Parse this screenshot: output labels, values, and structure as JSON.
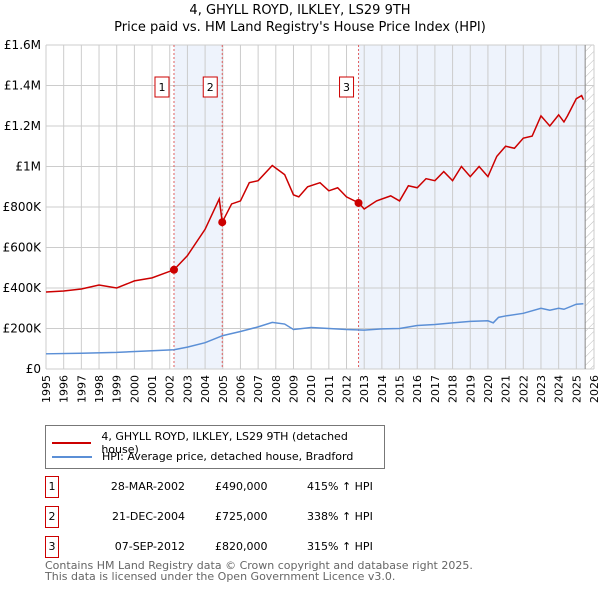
{
  "chart_data": {
    "type": "line",
    "title": "4, GHYLL ROYD, ILKLEY, LS29 9TH",
    "subtitle": "Price paid vs. HM Land Registry's House Price Index (HPI)",
    "xlim": [
      1995,
      2026
    ],
    "ylim": [
      0,
      1600000
    ],
    "x_ticks": [
      "1995",
      "1996",
      "1997",
      "1998",
      "1999",
      "2000",
      "2001",
      "2002",
      "2003",
      "2004",
      "2005",
      "2006",
      "2007",
      "2008",
      "2009",
      "2010",
      "2011",
      "2012",
      "2013",
      "2014",
      "2015",
      "2016",
      "2017",
      "2018",
      "2019",
      "2020",
      "2021",
      "2022",
      "2023",
      "2024",
      "2025",
      "2026"
    ],
    "y_ticks": [
      {
        "v": 0,
        "label": "£0"
      },
      {
        "v": 200000,
        "label": "£200K"
      },
      {
        "v": 400000,
        "label": "£400K"
      },
      {
        "v": 600000,
        "label": "£600K"
      },
      {
        "v": 800000,
        "label": "£800K"
      },
      {
        "v": 1000000,
        "label": "£1M"
      },
      {
        "v": 1200000,
        "label": "£1.2M"
      },
      {
        "v": 1400000,
        "label": "£1.4M"
      },
      {
        "v": 1600000,
        "label": "£1.6M"
      }
    ],
    "grid": true,
    "series": [
      {
        "name": "4, GHYLL ROYD, ILKLEY, LS29 9TH (detached house)",
        "color": "#cc0000",
        "x": [
          1995,
          1996,
          1997,
          1998,
          1999,
          2000,
          2001,
          2002.24,
          2003,
          2004,
          2004.8,
          2004.97,
          2005.5,
          2006,
          2006.5,
          2007,
          2007.8,
          2008.5,
          2009,
          2009.3,
          2009.8,
          2010.5,
          2011,
          2011.5,
          2012,
          2012.7,
          2013,
          2013.7,
          2014.5,
          2015,
          2015.5,
          2016,
          2016.5,
          2017,
          2017.5,
          2018,
          2018.5,
          2019,
          2019.5,
          2020,
          2020.5,
          2021,
          2021.5,
          2022,
          2022.5,
          2023,
          2023.5,
          2024,
          2024.3,
          2024.5,
          2025,
          2025.3,
          2025.4
        ],
        "y": [
          380000,
          385000,
          395000,
          415000,
          400000,
          435000,
          450000,
          490000,
          560000,
          690000,
          840000,
          725000,
          815000,
          830000,
          920000,
          930000,
          1005000,
          960000,
          860000,
          850000,
          900000,
          920000,
          880000,
          895000,
          850000,
          820000,
          790000,
          830000,
          855000,
          830000,
          905000,
          895000,
          940000,
          930000,
          975000,
          930000,
          1000000,
          950000,
          1000000,
          950000,
          1050000,
          1100000,
          1090000,
          1140000,
          1150000,
          1250000,
          1200000,
          1255000,
          1220000,
          1250000,
          1335000,
          1350000,
          1330000
        ]
      },
      {
        "name": "HPI: Average price, detached house, Bradford",
        "color": "#5b8fd6",
        "x": [
          1995,
          1997,
          1999,
          2001,
          2002.24,
          2003,
          2004,
          2005,
          2006,
          2007,
          2007.8,
          2008.5,
          2009,
          2010,
          2011,
          2012,
          2013,
          2014,
          2015,
          2016,
          2017,
          2018,
          2019,
          2020,
          2020.3,
          2020.6,
          2021,
          2022,
          2023,
          2023.5,
          2024,
          2024.3,
          2025,
          2025.4
        ],
        "y": [
          75000,
          78000,
          82000,
          90000,
          95000,
          108000,
          130000,
          165000,
          185000,
          208000,
          230000,
          222000,
          195000,
          205000,
          200000,
          195000,
          192000,
          198000,
          200000,
          215000,
          220000,
          228000,
          235000,
          238000,
          228000,
          255000,
          262000,
          275000,
          300000,
          290000,
          300000,
          295000,
          320000,
          322000
        ]
      }
    ],
    "sales": [
      {
        "n": "1",
        "x": 2002.24,
        "y": 490000,
        "date": "28-MAR-2002",
        "price": "£490,000",
        "hpi": "415% ↑ HPI"
      },
      {
        "n": "2",
        "x": 2004.97,
        "y": 725000,
        "date": "21-DEC-2004",
        "price": "£725,000",
        "hpi": "338% ↑ HPI"
      },
      {
        "n": "3",
        "x": 2012.68,
        "y": 820000,
        "date": "07-SEP-2012",
        "price": "£820,000",
        "hpi": "315% ↑ HPI"
      }
    ],
    "shaded": [
      [
        2002.24,
        2004.97
      ],
      [
        2012.68,
        2025.5
      ]
    ],
    "forecast_start": 2025.5
  },
  "footer": {
    "line1": "Contains HM Land Registry data © Crown copyright and database right 2025.",
    "line2": "This data is licensed under the Open Government Licence v3.0."
  }
}
